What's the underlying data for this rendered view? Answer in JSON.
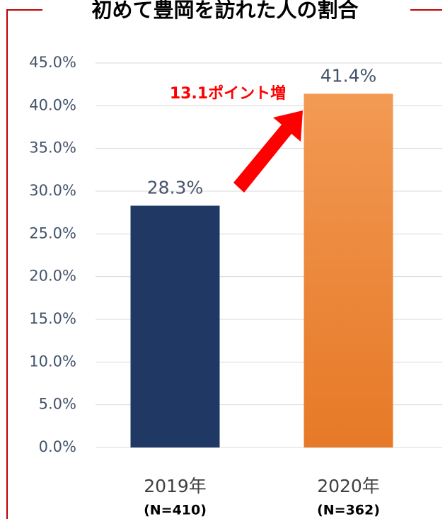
{
  "chart_data": {
    "type": "bar",
    "title": "初めて豊岡を訪れた人の割合",
    "categories": [
      "2019年",
      "2020年"
    ],
    "category_notes": [
      "(N=410)",
      "(N=362)"
    ],
    "values": [
      28.3,
      41.4
    ],
    "value_labels": [
      "28.3%",
      "41.4%"
    ],
    "colors": [
      "#203864",
      "#f0842f"
    ],
    "annotation": "13.1ポイント増",
    "ylim": [
      0,
      45
    ],
    "yticks": [
      {
        "value": 0,
        "label": "0.0%"
      },
      {
        "value": 5,
        "label": "5.0%"
      },
      {
        "value": 10,
        "label": "10.0%"
      },
      {
        "value": 15,
        "label": "15.0%"
      },
      {
        "value": 20,
        "label": "20.0%"
      },
      {
        "value": 25,
        "label": "25.0%"
      },
      {
        "value": 30,
        "label": "30.0%"
      },
      {
        "value": 35,
        "label": "35.0%"
      },
      {
        "value": 40,
        "label": "40.0%"
      },
      {
        "value": 45,
        "label": "45.0%"
      }
    ],
    "grid": true
  }
}
